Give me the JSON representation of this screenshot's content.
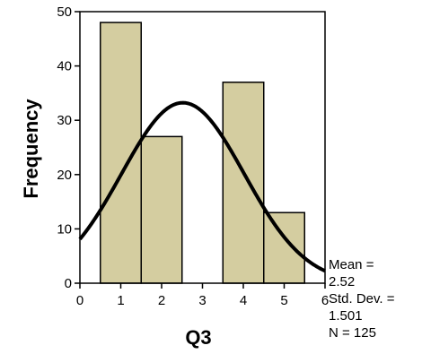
{
  "chart_data": {
    "type": "bar",
    "subtype": "histogram",
    "title": "",
    "xlabel": "Q3",
    "ylabel": "Frequency",
    "xlim": [
      0,
      6
    ],
    "ylim": [
      0,
      50
    ],
    "x_ticks": [
      0,
      1,
      2,
      3,
      4,
      5,
      6
    ],
    "y_ticks": [
      0,
      10,
      20,
      30,
      40,
      50
    ],
    "grid": false,
    "bin_width": 1,
    "bars": [
      {
        "x": 1,
        "value": 48
      },
      {
        "x": 2,
        "value": 27
      },
      {
        "x": 3,
        "value": 0
      },
      {
        "x": 4,
        "value": 37
      },
      {
        "x": 5,
        "value": 13
      }
    ],
    "normal_curve": {
      "mean": 2.52,
      "std_dev": 1.501,
      "n": 125
    },
    "bar_color": "#d4cda0",
    "curve_color": "#000000",
    "stats_labels": {
      "mean_label": "Mean =",
      "mean_value": "2.52",
      "std_label": "Std. Dev. =",
      "std_value": "1.501",
      "n_label": "N = 125"
    }
  }
}
